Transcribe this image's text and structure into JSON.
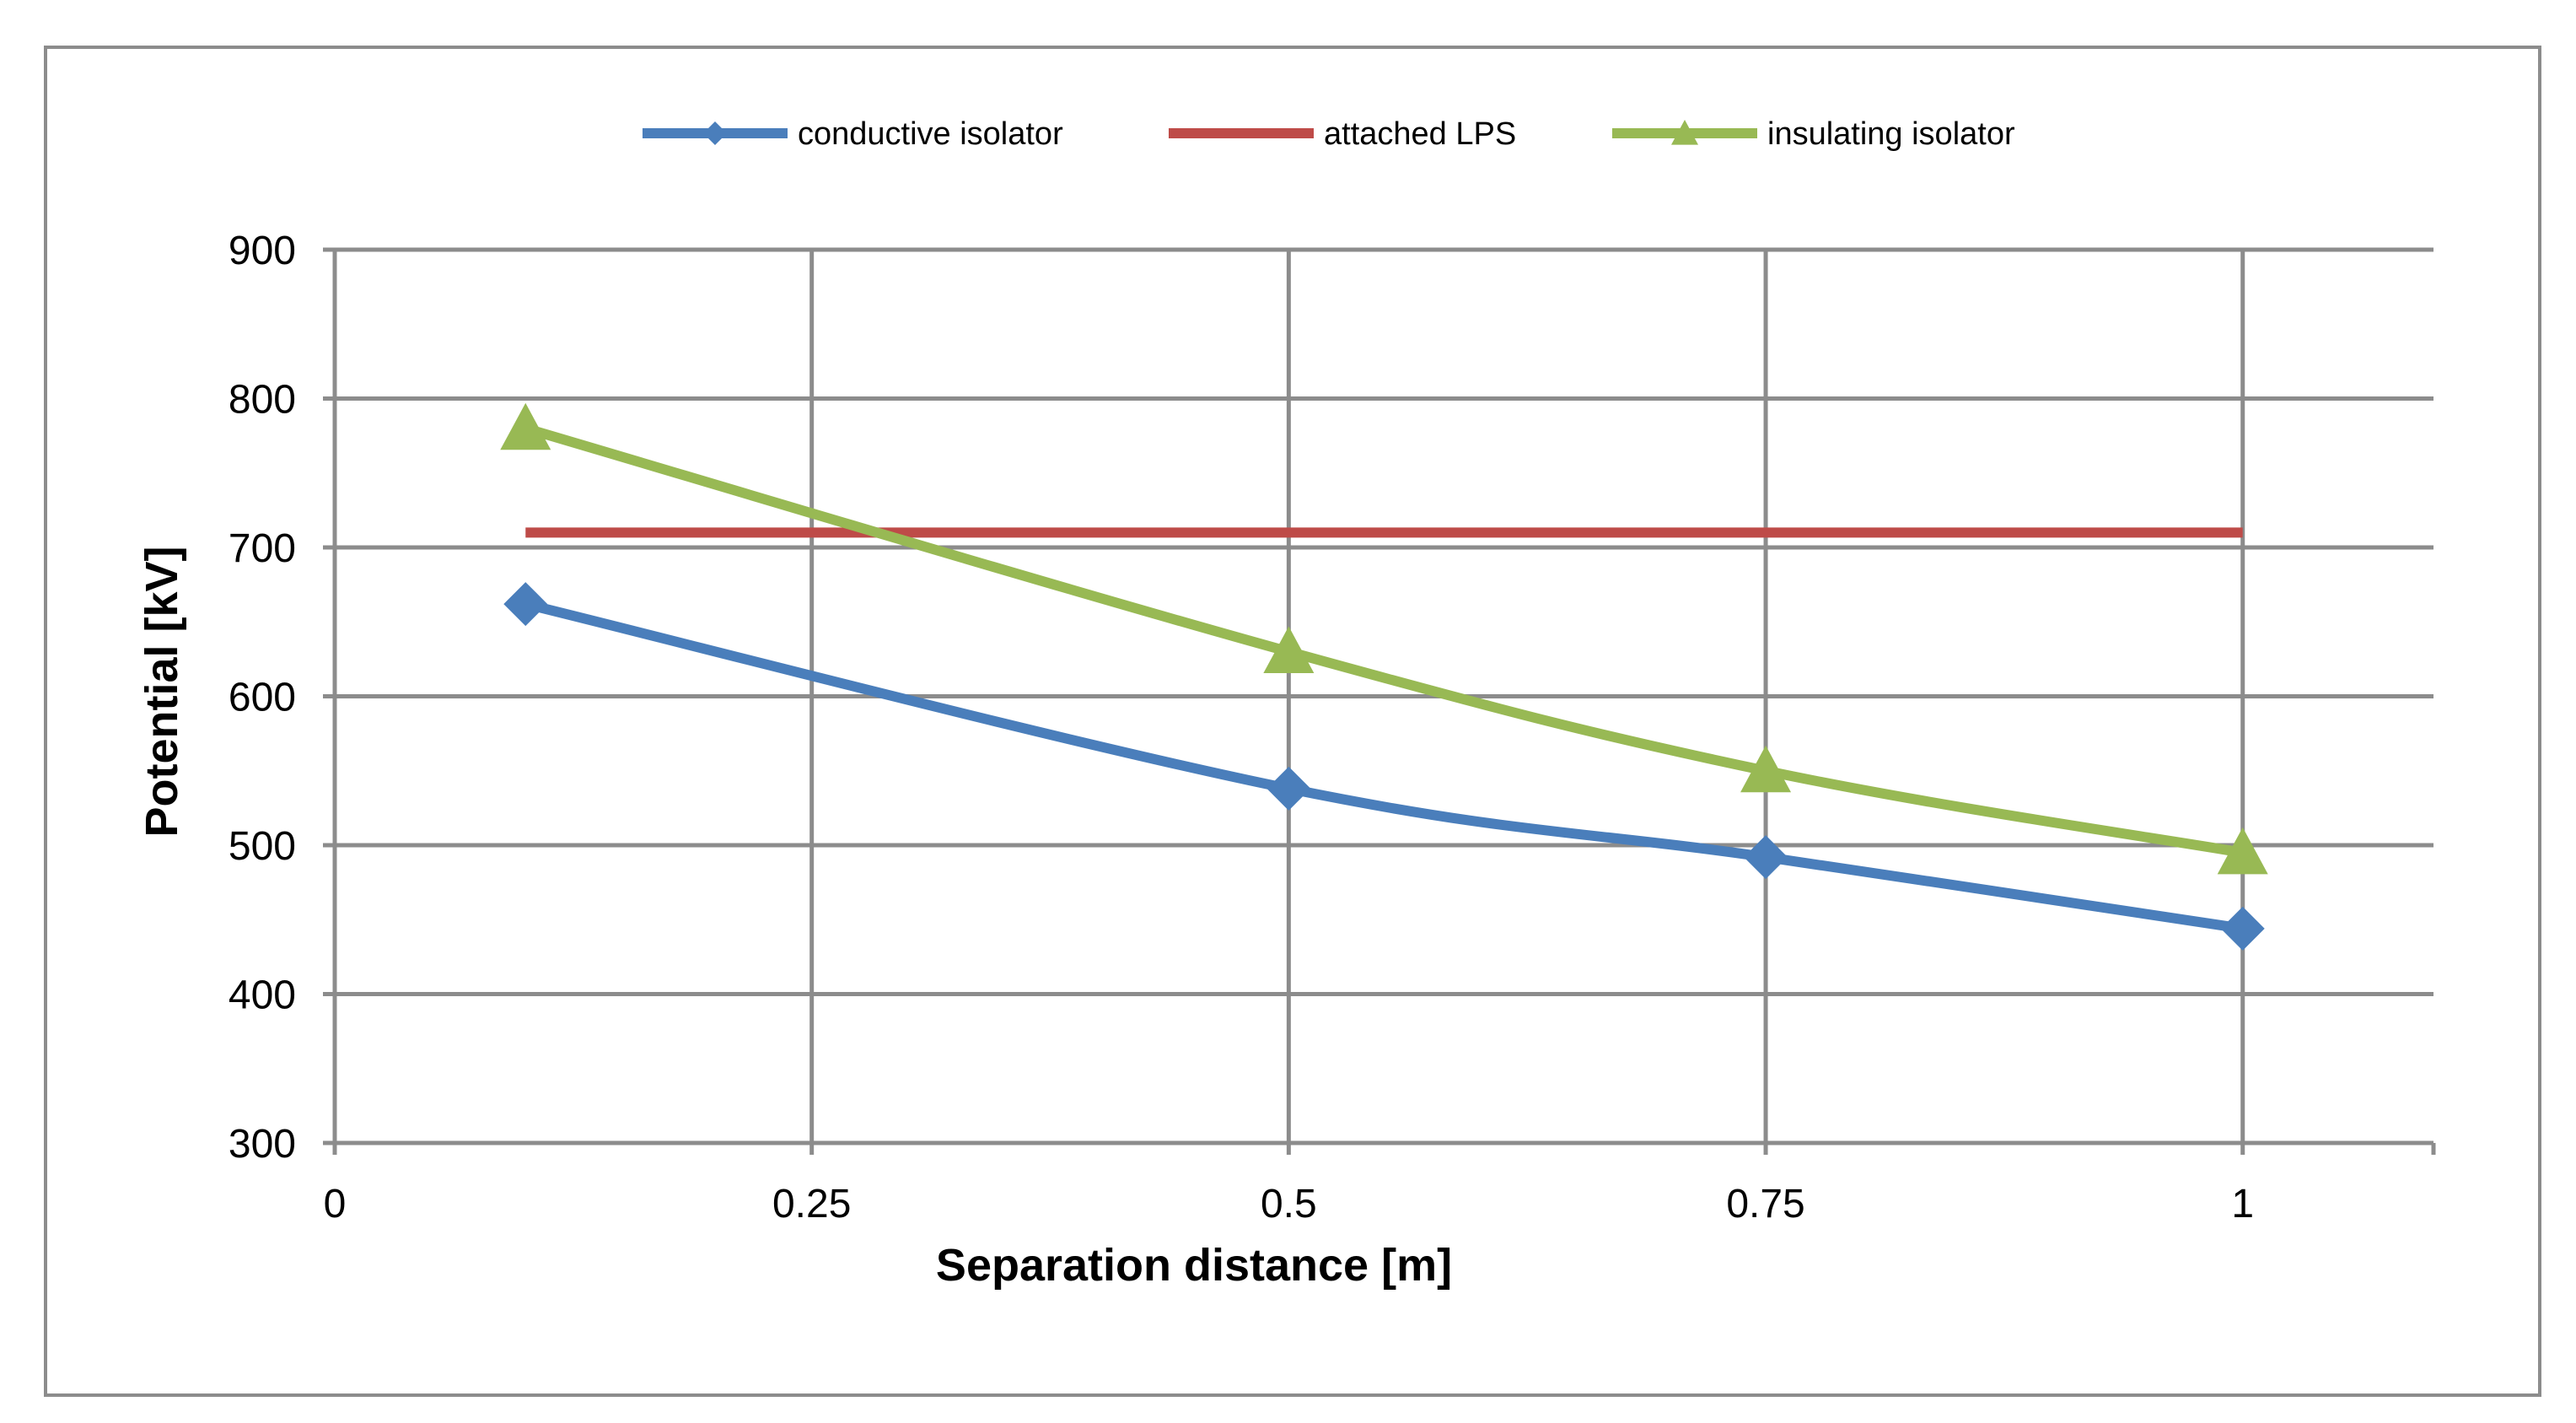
{
  "chart_data": {
    "type": "line",
    "title": "",
    "xlabel": "Separation distance [m]",
    "ylabel": "Potential [kV]",
    "xlim": [
      0,
      1.1
    ],
    "ylim": [
      300,
      900
    ],
    "x_ticks": [
      0,
      0.25,
      0.5,
      0.75,
      1
    ],
    "x_tick_labels": [
      "0",
      "0.25",
      "0.5",
      "0.75",
      "1"
    ],
    "y_ticks": [
      300,
      400,
      500,
      600,
      700,
      800,
      900
    ],
    "y_tick_labels": [
      "300",
      "400",
      "500",
      "600",
      "700",
      "800",
      "900"
    ],
    "grid": true,
    "legend_position": "top",
    "series": [
      {
        "name": "conductive isolator",
        "color": "#4a7ebb",
        "marker": "diamond",
        "x": [
          0.1,
          0.5,
          0.75,
          1
        ],
        "values": [
          662,
          538,
          492,
          444
        ]
      },
      {
        "name": "attached LPS",
        "color": "#be4b48",
        "marker": "none",
        "x": [
          0.1,
          1
        ],
        "values": [
          710,
          710
        ]
      },
      {
        "name": "insulating isolator",
        "color": "#98b954",
        "marker": "triangle",
        "x": [
          0.1,
          0.5,
          0.75,
          1
        ],
        "values": [
          780,
          630,
          550,
          495
        ]
      }
    ]
  },
  "colors": {
    "grid": "#8c8c8c",
    "frame": "#8c8c8c",
    "background": "#ffffff"
  }
}
